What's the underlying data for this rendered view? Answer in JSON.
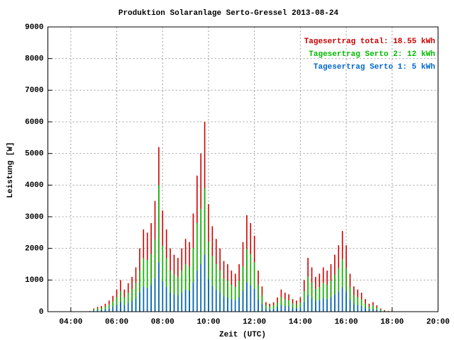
{
  "chart_data": {
    "type": "impulse",
    "title": "Produktion Solaranlage Serto-Gressel 2013-08-24",
    "x_label": "Zeit (UTC)",
    "y_label": "Leistung [W]",
    "xlim": [
      180,
      1200
    ],
    "ylim": [
      0,
      9000
    ],
    "xticks": [
      {
        "value": 240,
        "label": "04:00"
      },
      {
        "value": 360,
        "label": "06:00"
      },
      {
        "value": 480,
        "label": "08:00"
      },
      {
        "value": 600,
        "label": "10:00"
      },
      {
        "value": 720,
        "label": "12:00"
      },
      {
        "value": 840,
        "label": "14:00"
      },
      {
        "value": 960,
        "label": "16:00"
      },
      {
        "value": 1080,
        "label": "18:00"
      },
      {
        "value": 1200,
        "label": "20:00"
      }
    ],
    "yticks": [
      0,
      1000,
      2000,
      3000,
      4000,
      5000,
      6000,
      7000,
      8000,
      9000
    ],
    "grid": true,
    "legend": "top-right",
    "x": [
      280,
      290,
      300,
      310,
      320,
      330,
      340,
      350,
      360,
      370,
      380,
      390,
      400,
      410,
      420,
      430,
      440,
      450,
      460,
      470,
      480,
      490,
      500,
      510,
      520,
      530,
      540,
      550,
      560,
      570,
      580,
      590,
      600,
      610,
      620,
      630,
      640,
      650,
      660,
      670,
      680,
      690,
      700,
      710,
      720,
      730,
      740,
      750,
      760,
      770,
      780,
      790,
      800,
      810,
      820,
      830,
      840,
      850,
      860,
      870,
      880,
      890,
      900,
      910,
      920,
      930,
      940,
      950,
      960,
      970,
      980,
      990,
      1000,
      1010,
      1020,
      1030,
      1040,
      1050,
      1060,
      1070,
      1080
    ],
    "series": [
      {
        "name": "Tagesertrag total: 18.55 kWh",
        "color": "#cc0000",
        "values": [
          0,
          20,
          100,
          150,
          180,
          250,
          350,
          500,
          700,
          1000,
          700,
          900,
          1100,
          1400,
          2000,
          2600,
          2500,
          2800,
          3500,
          5200,
          3200,
          2600,
          2000,
          1800,
          1700,
          2000,
          2300,
          2200,
          3100,
          4300,
          5000,
          6000,
          3400,
          2700,
          2300,
          2000,
          1600,
          1500,
          1300,
          1200,
          1500,
          2200,
          3050,
          2800,
          2400,
          1300,
          800,
          300,
          250,
          300,
          450,
          700,
          600,
          550,
          400,
          350,
          450,
          1000,
          1700,
          1400,
          1100,
          1200,
          1400,
          1300,
          1500,
          1800,
          2100,
          2550,
          2100,
          1200,
          800,
          700,
          600,
          400,
          250,
          300,
          200,
          100,
          50,
          20,
          0
        ]
      },
      {
        "name": "Tagesertrag Serto 2: 12 kWh",
        "color": "#00bb00",
        "values": [
          0,
          10,
          70,
          100,
          120,
          160,
          230,
          330,
          460,
          650,
          460,
          590,
          720,
          910,
          1300,
          1690,
          1630,
          1820,
          2280,
          4000,
          2080,
          1690,
          1300,
          1170,
          1110,
          1300,
          1500,
          1430,
          2020,
          2800,
          3250,
          3900,
          2210,
          1760,
          1500,
          1300,
          1040,
          980,
          850,
          780,
          980,
          1430,
          1980,
          1820,
          1560,
          850,
          520,
          200,
          160,
          200,
          290,
          460,
          390,
          360,
          260,
          230,
          290,
          650,
          1110,
          910,
          720,
          780,
          910,
          850,
          980,
          1170,
          1370,
          1660,
          1370,
          780,
          520,
          460,
          390,
          260,
          160,
          200,
          130,
          70,
          30,
          10,
          0
        ]
      },
      {
        "name": "Tagesertrag Serto 1: 5 kWh",
        "color": "#0066cc",
        "values": [
          0,
          10,
          30,
          50,
          50,
          80,
          110,
          150,
          210,
          300,
          210,
          270,
          330,
          420,
          600,
          780,
          750,
          840,
          1050,
          1560,
          960,
          780,
          600,
          540,
          510,
          600,
          690,
          660,
          930,
          1290,
          1500,
          1800,
          1020,
          810,
          690,
          600,
          480,
          450,
          390,
          360,
          450,
          660,
          920,
          840,
          720,
          390,
          240,
          90,
          80,
          90,
          140,
          210,
          180,
          170,
          120,
          110,
          140,
          300,
          510,
          420,
          330,
          360,
          420,
          390,
          450,
          540,
          630,
          770,
          630,
          360,
          240,
          210,
          180,
          120,
          80,
          90,
          60,
          30,
          20,
          10,
          0
        ]
      }
    ]
  }
}
